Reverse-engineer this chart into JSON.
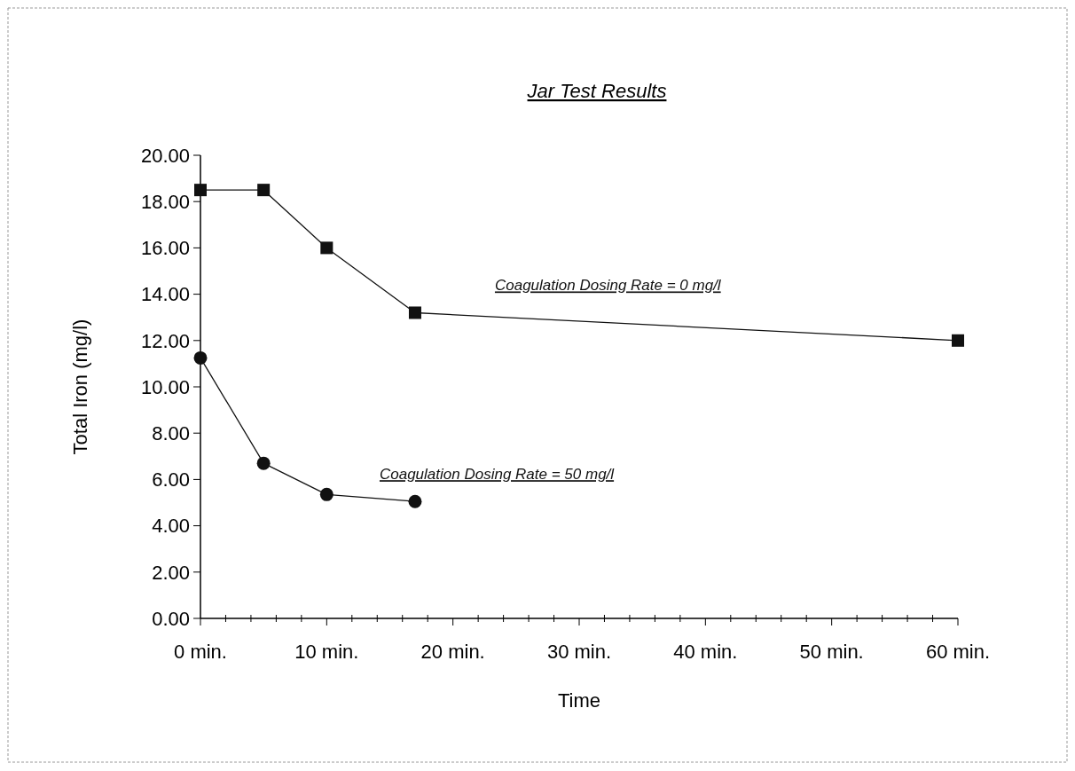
{
  "chart_data": {
    "type": "line",
    "title": "Jar Test Results",
    "xlabel": "Time",
    "ylabel": "Total Iron (mg/l)",
    "xlim": [
      0,
      60
    ],
    "xticks": [
      {
        "value": 0,
        "label": "0 min."
      },
      {
        "value": 2,
        "label": null
      },
      {
        "value": 4,
        "label": null
      },
      {
        "value": 6,
        "label": null
      },
      {
        "value": 8,
        "label": null
      },
      {
        "value": 10,
        "label": "10 min."
      },
      {
        "value": 12,
        "label": null
      },
      {
        "value": 14,
        "label": null
      },
      {
        "value": 16,
        "label": null
      },
      {
        "value": 18,
        "label": null
      },
      {
        "value": 20,
        "label": "20 min."
      },
      {
        "value": 22,
        "label": null
      },
      {
        "value": 24,
        "label": null
      },
      {
        "value": 26,
        "label": null
      },
      {
        "value": 28,
        "label": null
      },
      {
        "value": 30,
        "label": "30 min."
      },
      {
        "value": 32,
        "label": null
      },
      {
        "value": 34,
        "label": null
      },
      {
        "value": 36,
        "label": null
      },
      {
        "value": 38,
        "label": null
      },
      {
        "value": 40,
        "label": "40 min."
      },
      {
        "value": 42,
        "label": null
      },
      {
        "value": 44,
        "label": null
      },
      {
        "value": 46,
        "label": null
      },
      {
        "value": 48,
        "label": null
      },
      {
        "value": 50,
        "label": "50 min."
      },
      {
        "value": 52,
        "label": null
      },
      {
        "value": 54,
        "label": null
      },
      {
        "value": 56,
        "label": null
      },
      {
        "value": 58,
        "label": null
      },
      {
        "value": 60,
        "label": "60 min."
      }
    ],
    "ylim": [
      0,
      20
    ],
    "yticks": [
      {
        "value": 0,
        "label": "0.00"
      },
      {
        "value": 2,
        "label": "2.00"
      },
      {
        "value": 4,
        "label": "4.00"
      },
      {
        "value": 6,
        "label": "6.00"
      },
      {
        "value": 8,
        "label": "8.00"
      },
      {
        "value": 10,
        "label": "10.00"
      },
      {
        "value": 12,
        "label": "12.00"
      },
      {
        "value": 14,
        "label": "14.00"
      },
      {
        "value": 16,
        "label": "16.00"
      },
      {
        "value": 18,
        "label": "18.00"
      },
      {
        "value": 20,
        "label": "20.00"
      }
    ],
    "grid": false,
    "line_style": "solid",
    "series": [
      {
        "name": "Coagulation Dosing Rate = 0 mg/l",
        "color": "#111111",
        "marker": "square",
        "x": [
          0,
          5,
          10,
          17,
          60
        ],
        "values": [
          18.5,
          18.5,
          16.0,
          13.2,
          12.0
        ]
      },
      {
        "name": "Coagulation Dosing Rate = 50 mg/l",
        "color": "#111111",
        "marker": "circle",
        "x": [
          0,
          5,
          10,
          17
        ],
        "values": [
          11.25,
          6.7,
          5.35,
          5.05
        ]
      }
    ]
  }
}
